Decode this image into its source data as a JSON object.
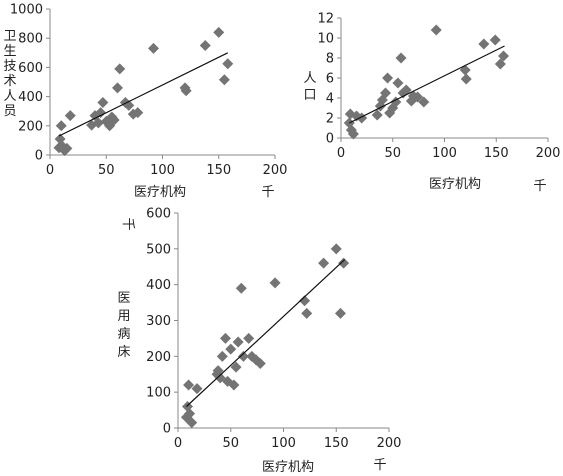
{
  "chart_data": [
    {
      "type": "scatter",
      "xlabel": "医疗机构",
      "x_unit": "千",
      "ylabel": "卫生技术人员",
      "xlim": [
        0,
        200
      ],
      "ylim": [
        0,
        1000
      ],
      "xticks": [
        0,
        50,
        100,
        150,
        200
      ],
      "yticks": [
        0,
        200,
        400,
        600,
        800,
        1000
      ],
      "points": [
        [
          8,
          50
        ],
        [
          9,
          110
        ],
        [
          10,
          200
        ],
        [
          11,
          60
        ],
        [
          13,
          30
        ],
        [
          15,
          45
        ],
        [
          18,
          270
        ],
        [
          37,
          205
        ],
        [
          40,
          270
        ],
        [
          43,
          220
        ],
        [
          45,
          290
        ],
        [
          47,
          360
        ],
        [
          50,
          230
        ],
        [
          53,
          200
        ],
        [
          55,
          260
        ],
        [
          57,
          240
        ],
        [
          60,
          460
        ],
        [
          62,
          590
        ],
        [
          67,
          360
        ],
        [
          70,
          340
        ],
        [
          74,
          280
        ],
        [
          78,
          290
        ],
        [
          92,
          730
        ],
        [
          120,
          460
        ],
        [
          121,
          440
        ],
        [
          138,
          750
        ],
        [
          150,
          840
        ],
        [
          155,
          515
        ],
        [
          158,
          625
        ]
      ],
      "trendline": [
        [
          8,
          130
        ],
        [
          158,
          700
        ]
      ]
    },
    {
      "type": "scatter",
      "xlabel": "医疗机构",
      "x_unit": "千",
      "ylabel": "人口",
      "xlim": [
        0,
        200
      ],
      "ylim": [
        0,
        12
      ],
      "xticks": [
        0,
        50,
        100,
        150,
        200
      ],
      "yticks": [
        0,
        2,
        4,
        6,
        8,
        10,
        12
      ],
      "points": [
        [
          8,
          1.5
        ],
        [
          9,
          2.4
        ],
        [
          10,
          0.8
        ],
        [
          12,
          0.4
        ],
        [
          15,
          2.2
        ],
        [
          20,
          2.0
        ],
        [
          35,
          2.3
        ],
        [
          38,
          3.2
        ],
        [
          40,
          3.8
        ],
        [
          43,
          4.5
        ],
        [
          45,
          6.0
        ],
        [
          47,
          2.5
        ],
        [
          50,
          3.0
        ],
        [
          53,
          3.6
        ],
        [
          55,
          5.5
        ],
        [
          58,
          8.0
        ],
        [
          60,
          4.5
        ],
        [
          63,
          4.8
        ],
        [
          68,
          3.7
        ],
        [
          70,
          4.2
        ],
        [
          74,
          4.1
        ],
        [
          80,
          3.6
        ],
        [
          92,
          10.8
        ],
        [
          120,
          6.8
        ],
        [
          121,
          5.9
        ],
        [
          138,
          9.4
        ],
        [
          149,
          9.8
        ],
        [
          154,
          7.4
        ],
        [
          157,
          8.2
        ]
      ],
      "trendline": [
        [
          8,
          1.5
        ],
        [
          158,
          9.2
        ]
      ]
    },
    {
      "type": "scatter",
      "xlabel": "医疗机构",
      "x_unit": "千",
      "ylabel": "医用病床",
      "y_unit": "千",
      "xlim": [
        0,
        200
      ],
      "ylim": [
        0,
        600
      ],
      "xticks": [
        0,
        50,
        100,
        150,
        200
      ],
      "yticks": [
        0,
        100,
        200,
        300,
        400,
        500,
        600
      ],
      "points": [
        [
          8,
          30
        ],
        [
          9,
          60
        ],
        [
          10,
          120
        ],
        [
          11,
          40
        ],
        [
          13,
          15
        ],
        [
          18,
          110
        ],
        [
          37,
          150
        ],
        [
          38,
          160
        ],
        [
          40,
          140
        ],
        [
          42,
          200
        ],
        [
          45,
          250
        ],
        [
          47,
          130
        ],
        [
          50,
          220
        ],
        [
          53,
          120
        ],
        [
          55,
          170
        ],
        [
          57,
          240
        ],
        [
          60,
          390
        ],
        [
          62,
          200
        ],
        [
          67,
          250
        ],
        [
          70,
          200
        ],
        [
          74,
          190
        ],
        [
          78,
          180
        ],
        [
          92,
          405
        ],
        [
          120,
          355
        ],
        [
          122,
          320
        ],
        [
          138,
          460
        ],
        [
          150,
          500
        ],
        [
          154,
          320
        ],
        [
          157,
          460
        ]
      ],
      "trendline": [
        [
          8,
          60
        ],
        [
          158,
          470
        ]
      ]
    }
  ]
}
